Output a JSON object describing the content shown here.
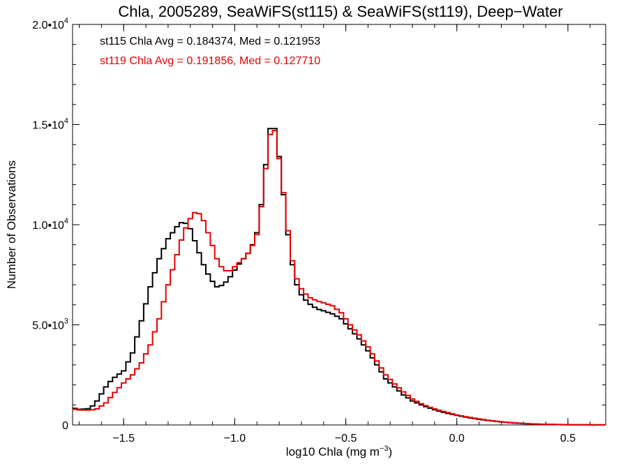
{
  "chart_data": {
    "type": "line",
    "title": "Chla, 2005289, SeaWiFS(st115) & SeaWiFS(st119), Deep−Water",
    "xlabel": {
      "base": "log10 Chla (mg m",
      "sup": "−3",
      "tail": ")"
    },
    "ylabel": "Number of Observations",
    "xlim": [
      -1.73,
      0.67
    ],
    "ylim": [
      0,
      20000
    ],
    "xticks": [
      {
        "value": -1.5,
        "label": "−1.5"
      },
      {
        "value": -1.0,
        "label": "−1.0"
      },
      {
        "value": -0.5,
        "label": "−0.5"
      },
      {
        "value": 0.0,
        "label": "0.0"
      },
      {
        "value": 0.5,
        "label": "0.5"
      }
    ],
    "xminor_step": 0.1,
    "yticks": [
      {
        "value": 0,
        "base": "0",
        "exp": ""
      },
      {
        "value": 5000,
        "base": "5.0•10",
        "exp": "3"
      },
      {
        "value": 10000,
        "base": "1.0•10",
        "exp": "4"
      },
      {
        "value": 15000,
        "base": "1.5•10",
        "exp": "4"
      },
      {
        "value": 20000,
        "base": "2.0•10",
        "exp": "4"
      }
    ],
    "yminor_step": 1000,
    "step": 0.02,
    "annotations": [
      "st115 Chla Avg = 0.184374, Med = 0.121953",
      "st119 Chla Avg = 0.191856, Med = 0.127710"
    ],
    "series": [
      {
        "name": "st115",
        "color": "#000000",
        "points": [
          [
            -1.73,
            850
          ],
          [
            -1.7,
            780
          ],
          [
            -1.65,
            820
          ],
          [
            -1.62,
            1200
          ],
          [
            -1.58,
            1900
          ],
          [
            -1.55,
            2300
          ],
          [
            -1.5,
            2700
          ],
          [
            -1.46,
            3600
          ],
          [
            -1.42,
            5200
          ],
          [
            -1.38,
            6900
          ],
          [
            -1.34,
            8300
          ],
          [
            -1.3,
            9300
          ],
          [
            -1.26,
            9900
          ],
          [
            -1.23,
            10200
          ],
          [
            -1.2,
            9800
          ],
          [
            -1.17,
            8900
          ],
          [
            -1.14,
            8000
          ],
          [
            -1.11,
            7300
          ],
          [
            -1.08,
            6900
          ],
          [
            -1.05,
            7000
          ],
          [
            -1.02,
            7400
          ],
          [
            -0.99,
            7900
          ],
          [
            -0.96,
            8300
          ],
          [
            -0.93,
            8700
          ],
          [
            -0.9,
            9600
          ],
          [
            -0.88,
            11000
          ],
          [
            -0.86,
            13000
          ],
          [
            -0.84,
            14800
          ],
          [
            -0.83,
            15300
          ],
          [
            -0.82,
            14800
          ],
          [
            -0.8,
            13400
          ],
          [
            -0.78,
            11500
          ],
          [
            -0.76,
            9500
          ],
          [
            -0.74,
            8000
          ],
          [
            -0.72,
            7000
          ],
          [
            -0.7,
            6500
          ],
          [
            -0.67,
            6100
          ],
          [
            -0.63,
            5800
          ],
          [
            -0.6,
            5700
          ],
          [
            -0.56,
            5550
          ],
          [
            -0.52,
            5300
          ],
          [
            -0.48,
            4800
          ],
          [
            -0.44,
            4300
          ],
          [
            -0.4,
            3700
          ],
          [
            -0.36,
            3000
          ],
          [
            -0.32,
            2300
          ],
          [
            -0.28,
            1900
          ],
          [
            -0.24,
            1500
          ],
          [
            -0.2,
            1200
          ],
          [
            -0.15,
            950
          ],
          [
            -0.1,
            760
          ],
          [
            -0.05,
            600
          ],
          [
            0.0,
            480
          ],
          [
            0.05,
            370
          ],
          [
            0.1,
            280
          ],
          [
            0.15,
            210
          ],
          [
            0.2,
            150
          ],
          [
            0.25,
            100
          ],
          [
            0.3,
            70
          ],
          [
            0.35,
            45
          ],
          [
            0.4,
            30
          ],
          [
            0.45,
            20
          ],
          [
            0.5,
            12
          ],
          [
            0.55,
            8
          ],
          [
            0.6,
            5
          ],
          [
            0.67,
            3
          ]
        ]
      },
      {
        "name": "st119",
        "color": "#e50000",
        "points": [
          [
            -1.73,
            800
          ],
          [
            -1.7,
            750
          ],
          [
            -1.65,
            740
          ],
          [
            -1.62,
            800
          ],
          [
            -1.58,
            1100
          ],
          [
            -1.55,
            1500
          ],
          [
            -1.5,
            2100
          ],
          [
            -1.46,
            2500
          ],
          [
            -1.42,
            3100
          ],
          [
            -1.38,
            4000
          ],
          [
            -1.34,
            5300
          ],
          [
            -1.3,
            7000
          ],
          [
            -1.26,
            8500
          ],
          [
            -1.23,
            9600
          ],
          [
            -1.2,
            10300
          ],
          [
            -1.18,
            10600
          ],
          [
            -1.16,
            10550
          ],
          [
            -1.14,
            10200
          ],
          [
            -1.11,
            9300
          ],
          [
            -1.08,
            8300
          ],
          [
            -1.05,
            7700
          ],
          [
            -1.02,
            7700
          ],
          [
            -0.99,
            8000
          ],
          [
            -0.96,
            8300
          ],
          [
            -0.93,
            8700
          ],
          [
            -0.9,
            9500
          ],
          [
            -0.88,
            10900
          ],
          [
            -0.86,
            12800
          ],
          [
            -0.84,
            14500
          ],
          [
            -0.83,
            15100
          ],
          [
            -0.82,
            14700
          ],
          [
            -0.8,
            13300
          ],
          [
            -0.78,
            11600
          ],
          [
            -0.76,
            9700
          ],
          [
            -0.74,
            8200
          ],
          [
            -0.72,
            7300
          ],
          [
            -0.7,
            6800
          ],
          [
            -0.67,
            6400
          ],
          [
            -0.63,
            6200
          ],
          [
            -0.6,
            6100
          ],
          [
            -0.56,
            5950
          ],
          [
            -0.52,
            5600
          ],
          [
            -0.48,
            5000
          ],
          [
            -0.44,
            4500
          ],
          [
            -0.4,
            3900
          ],
          [
            -0.36,
            3200
          ],
          [
            -0.32,
            2500
          ],
          [
            -0.28,
            2050
          ],
          [
            -0.24,
            1650
          ],
          [
            -0.2,
            1300
          ],
          [
            -0.15,
            1000
          ],
          [
            -0.1,
            800
          ],
          [
            -0.05,
            640
          ],
          [
            0.0,
            500
          ],
          [
            0.05,
            390
          ],
          [
            0.1,
            300
          ],
          [
            0.15,
            220
          ],
          [
            0.2,
            160
          ],
          [
            0.25,
            110
          ],
          [
            0.3,
            75
          ],
          [
            0.35,
            48
          ],
          [
            0.4,
            32
          ],
          [
            0.45,
            22
          ],
          [
            0.5,
            14
          ],
          [
            0.55,
            9
          ],
          [
            0.6,
            6
          ],
          [
            0.67,
            3
          ]
        ]
      }
    ]
  }
}
